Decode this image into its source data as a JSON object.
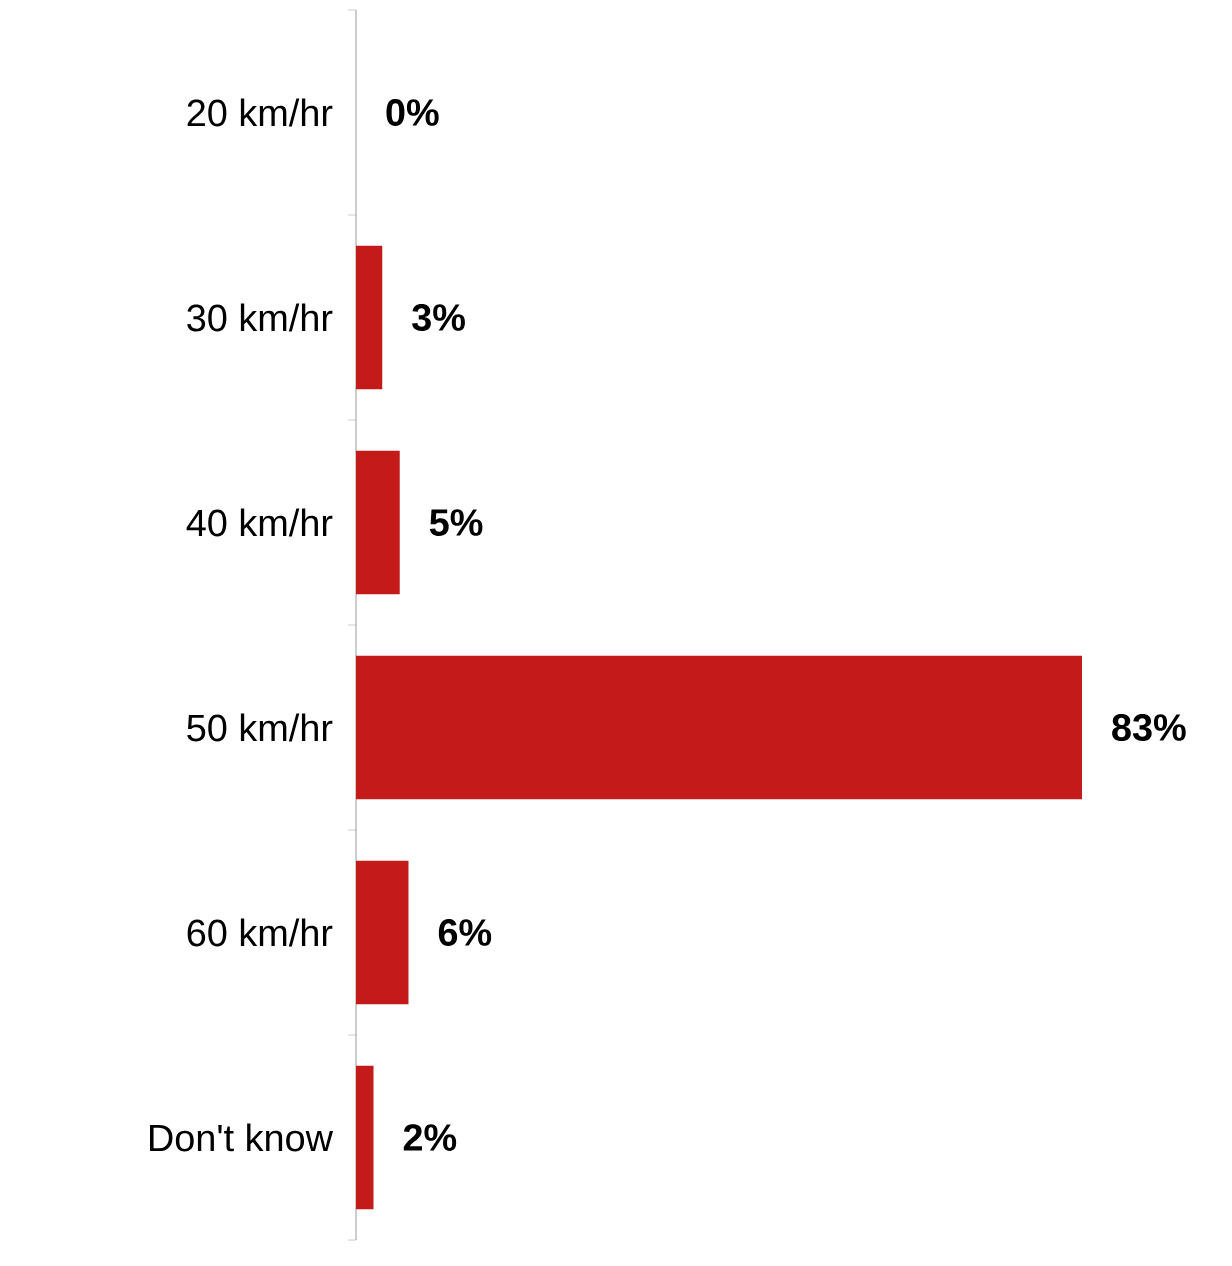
{
  "chart_data": {
    "type": "bar",
    "orientation": "horizontal",
    "categories": [
      "20 km/hr",
      "30 km/hr",
      "40 km/hr",
      "50 km/hr",
      "60 km/hr",
      "Don't know"
    ],
    "values": [
      0,
      3,
      5,
      83,
      6,
      2
    ],
    "value_labels": [
      "0%",
      "3%",
      "5%",
      "83%",
      "6%",
      "2%"
    ],
    "color": "#c41a1a"
  }
}
